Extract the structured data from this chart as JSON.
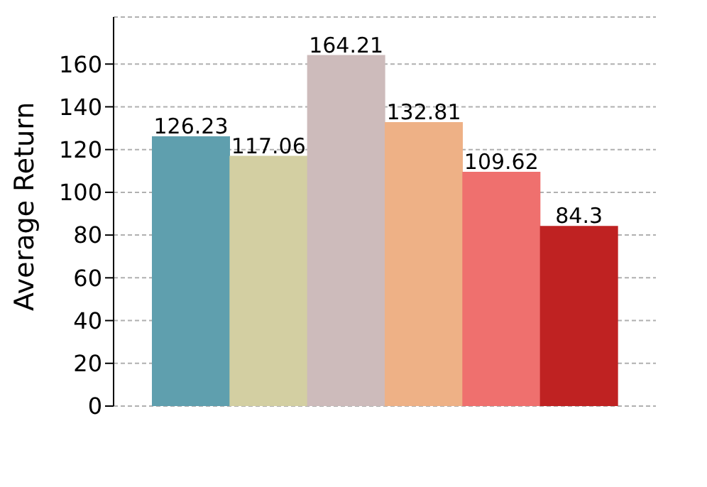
{
  "chart_data": {
    "type": "bar",
    "ylabel": "Average Return",
    "categories": [
      null,
      null,
      null,
      null,
      null,
      null
    ],
    "values": [
      126.23,
      117.06,
      164.21,
      132.81,
      109.62,
      84.3
    ],
    "colors": [
      "#5f9fae",
      "#d3cfa2",
      "#cdbbbb",
      "#eeb186",
      "#ef706e",
      "#bf2222"
    ],
    "ylim": [
      0,
      182
    ],
    "yticks": [
      0,
      20,
      40,
      60,
      80,
      100,
      120,
      140,
      160
    ],
    "grid": "y",
    "data_labels": true
  }
}
